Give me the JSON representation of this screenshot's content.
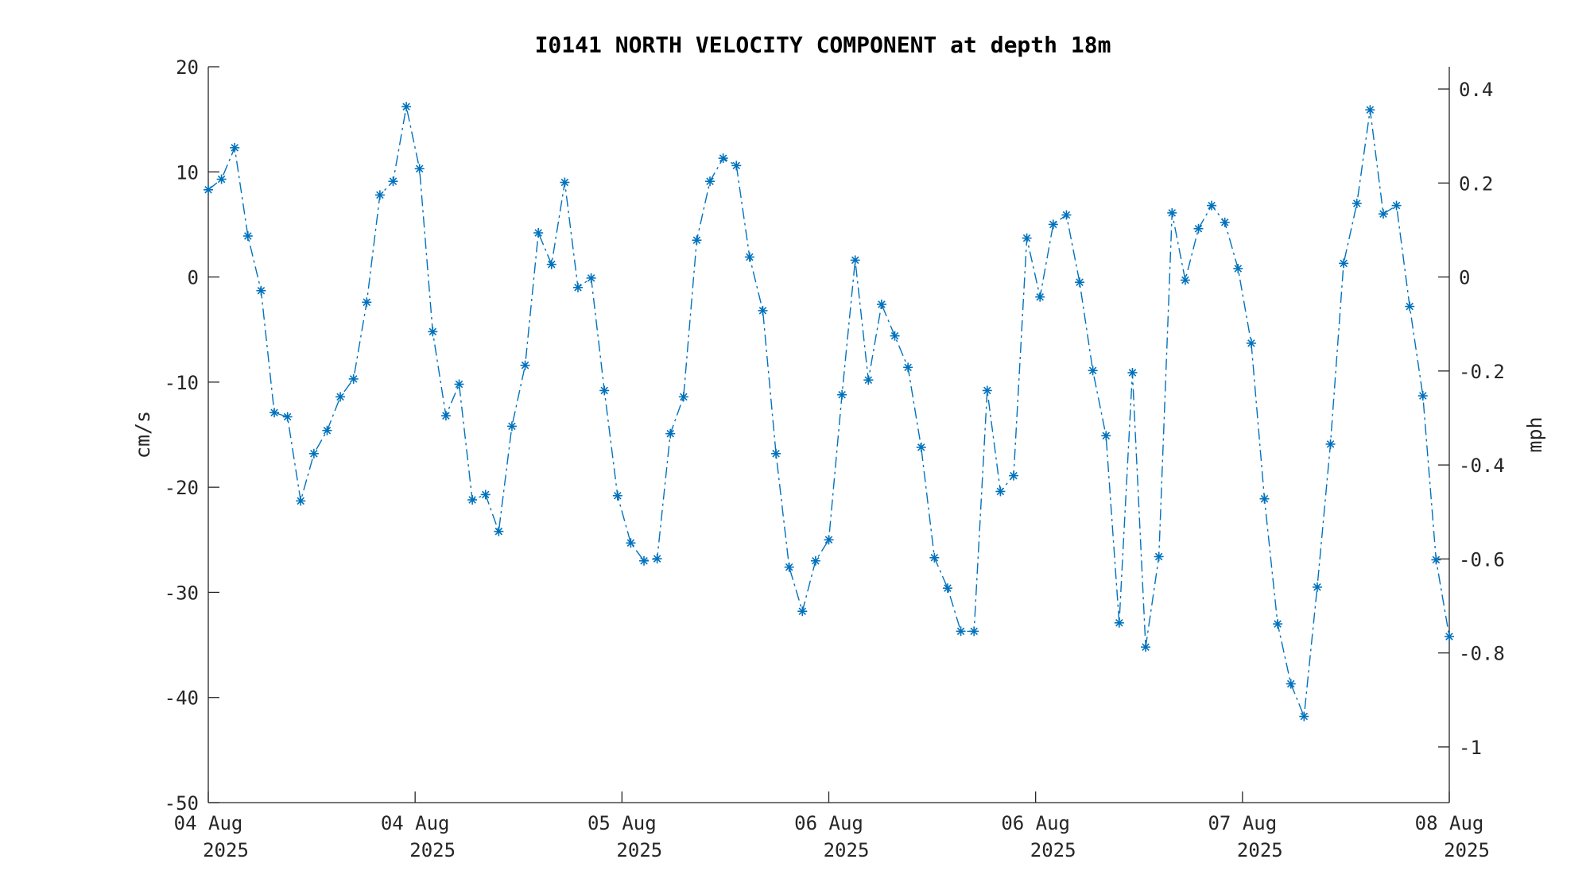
{
  "chart_data": {
    "type": "line",
    "title": "I0141 NORTH VELOCITY COMPONENT at depth 18m",
    "xlabel": "",
    "ylabel": "cm/s",
    "ylabel_right": "mph",
    "ylim": [
      -50,
      20
    ],
    "ylim_right_mph": [
      -1.1185,
      0.4474
    ],
    "yticks": [
      -50,
      -40,
      -30,
      -20,
      -10,
      0,
      10,
      20
    ],
    "yticks_right": [
      -1,
      -0.8,
      -0.6,
      -0.4,
      -0.2,
      0,
      0.2,
      0.4
    ],
    "yticks_right_labels": [
      "-1",
      "-0.8",
      "-0.6",
      "-0.4",
      "-0.2",
      "0",
      "0.2",
      "0.4"
    ],
    "xlim": [
      0,
      6
    ],
    "xticks": [
      {
        "pos": 0,
        "line1": "04 Aug",
        "line2": "2025"
      },
      {
        "pos": 1,
        "line1": "04 Aug",
        "line2": "2025"
      },
      {
        "pos": 2,
        "line1": "05 Aug",
        "line2": "2025"
      },
      {
        "pos": 3,
        "line1": "06 Aug",
        "line2": "2025"
      },
      {
        "pos": 4,
        "line1": "06 Aug",
        "line2": "2025"
      },
      {
        "pos": 5,
        "line1": "07 Aug",
        "line2": "2025"
      },
      {
        "pos": 6,
        "line1": "08 Aug",
        "line2": "2025"
      }
    ],
    "grid": false,
    "legend": "none",
    "color": "#0072BD",
    "line_style": "dash-dot",
    "marker": "asterisk",
    "series": [
      {
        "values": [
          8.3,
          9.3,
          12.3,
          3.9,
          -1.3,
          -12.9,
          -13.3,
          -21.3,
          -16.8,
          -14.6,
          -11.4,
          -9.7,
          -2.4,
          7.8,
          9.1,
          16.2,
          10.3,
          -5.2,
          -13.2,
          -10.2,
          -21.2,
          -20.7,
          -24.2,
          -14.2,
          -8.4,
          4.2,
          1.2,
          9.0,
          -1.0,
          -0.1,
          -10.8,
          -20.8,
          -25.3,
          -27.0,
          -26.8,
          -14.9,
          -11.4,
          3.5,
          9.1,
          11.3,
          10.6,
          1.9,
          -3.2,
          -16.8,
          -27.6,
          -31.8,
          -27.0,
          -25.0,
          -11.2,
          1.6,
          -9.8,
          -2.6,
          -5.6,
          -8.6,
          -16.2,
          -26.7,
          -29.6,
          -33.7,
          -33.7,
          -10.8,
          -20.4,
          -18.9,
          3.7,
          -1.9,
          5.0,
          5.9,
          -0.5,
          -8.9,
          -15.1,
          -32.9,
          -9.1,
          -35.2,
          -26.6,
          6.1,
          -0.3,
          4.6,
          6.8,
          5.2,
          0.8,
          -6.3,
          -21.1,
          -33.0,
          -38.7,
          -41.8,
          -29.5,
          -15.9,
          1.3,
          7.0,
          15.9,
          6.0,
          6.8,
          -2.8,
          -11.3,
          -26.9,
          -34.2
        ]
      }
    ]
  }
}
